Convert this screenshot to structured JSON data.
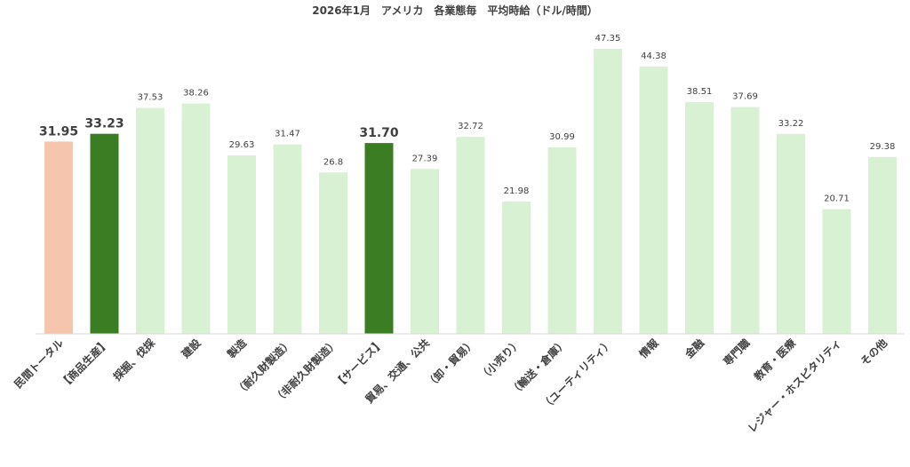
{
  "chart_data": {
    "type": "bar",
    "title": "2026年1月　アメリカ　各業態毎　平均時給（ドル/時間）",
    "xlabel": "",
    "ylabel": "",
    "ylim": [
      0,
      50
    ],
    "grid": false,
    "legend": "none",
    "categories": [
      "民間トータル",
      "【商品生産】",
      "採掘、伐採",
      "建設",
      "製造",
      "（耐久財製造）",
      "（非耐久財製造）",
      "【サービス】",
      "貿易、交通、公共",
      "（卸・貿易）",
      "（小売り）",
      "（輸送・倉庫）",
      "（ユーティリティ）",
      "情報",
      "金融",
      "専門職",
      "教育・医療",
      "レジャー・ホスピタリティ",
      "その他"
    ],
    "values": [
      31.95,
      33.23,
      37.53,
      38.26,
      29.63,
      31.47,
      26.8,
      31.7,
      27.39,
      32.72,
      21.98,
      30.99,
      47.35,
      44.38,
      38.51,
      37.69,
      33.22,
      20.71,
      29.38
    ],
    "value_labels": [
      "31.95",
      "33.23",
      "37.53",
      "38.26",
      "29.63",
      "31.47",
      "26.8",
      "31.70",
      "27.39",
      "32.72",
      "21.98",
      "30.99",
      "47.35",
      "44.38",
      "38.51",
      "37.69",
      "33.22",
      "20.71",
      "29.38"
    ],
    "bar_kinds": [
      "total",
      "group",
      "item",
      "item",
      "item",
      "item",
      "item",
      "group",
      "item",
      "item",
      "item",
      "item",
      "item",
      "item",
      "item",
      "item",
      "item",
      "item",
      "item"
    ]
  },
  "colors": {
    "total": "#f5c6ad",
    "group": "#3a7d22",
    "item": "#d8f1d2",
    "label_text": "#404040",
    "axis_line": "#d9d9d9"
  }
}
